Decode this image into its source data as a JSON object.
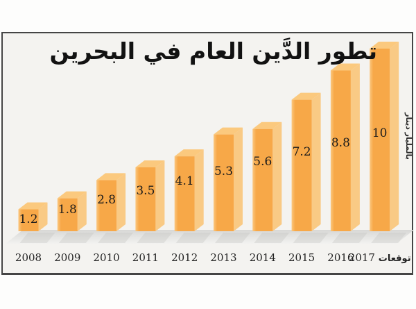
{
  "title": "تطور الدَّين العام في البحرين",
  "unit_label": "بالمليار دينار",
  "forecast_label": "توقعات",
  "chart_data": {
    "type": "bar",
    "title": "تطور الدَّين العام في البحرين",
    "categories": [
      "2008",
      "2009",
      "2010",
      "2011",
      "2012",
      "2013",
      "2014",
      "2015",
      "2016",
      "2017"
    ],
    "values": [
      1.2,
      1.8,
      2.8,
      3.5,
      4.1,
      5.3,
      5.6,
      7.2,
      8.8,
      10
    ],
    "data_labels": [
      "1.2",
      "1.8",
      "2.8",
      "3.5",
      "4.1",
      "5.3",
      "5.6",
      "7.2",
      "8.8",
      "10"
    ],
    "xlabel": "",
    "ylabel": "بالمليار دينار",
    "ylim": [
      0,
      10
    ],
    "grid": false,
    "legend": false,
    "last_category_suffix": "توقعات",
    "style": "3d-orange-bars-on-gray-floor",
    "colors": {
      "bar_front": "#F7A848",
      "bar_front_highlight": "#FBC77F",
      "bar_top": "#FBC97E",
      "bar_side": "#F9CA85",
      "floor_top": "#D8D8D6",
      "floor_bottom": "#F2F2F0",
      "shadow": "#BDBDBA",
      "frame_border": "#454545",
      "chart_bg": "#F4F3F0",
      "text": "#1B1B1B"
    }
  }
}
